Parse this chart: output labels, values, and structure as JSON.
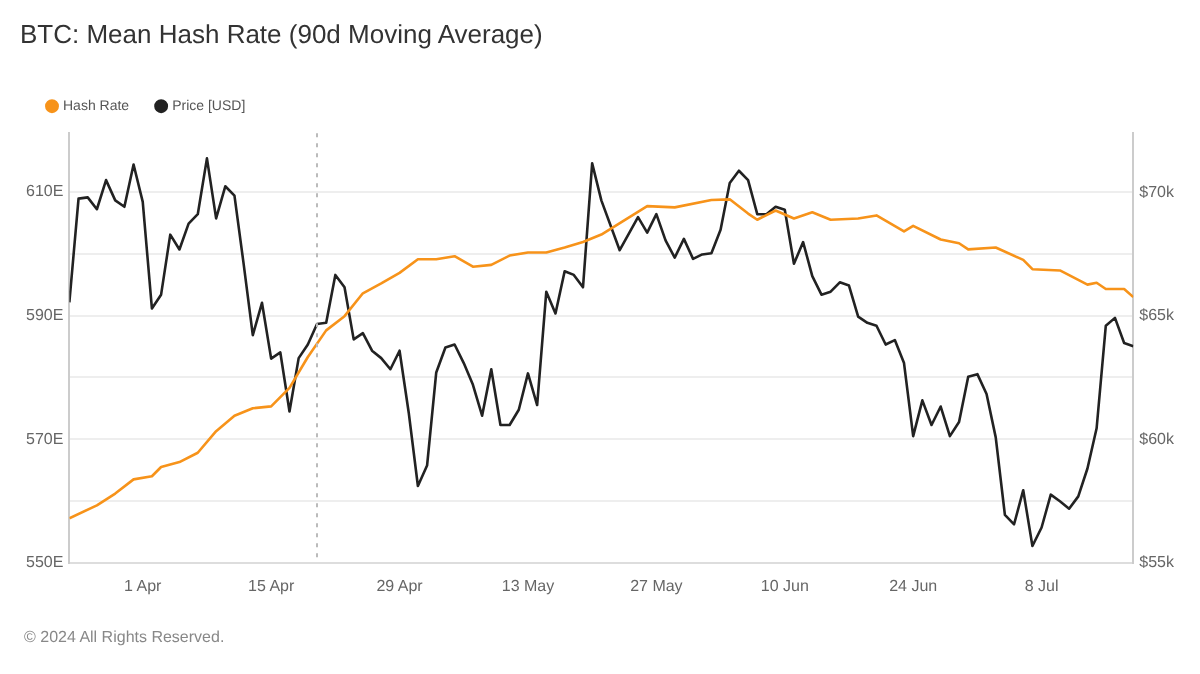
{
  "chart_data": {
    "type": "line",
    "title": "BTC: Mean Hash Rate (90d Moving Average)",
    "annotations": [
      "© 2024 All Rights Reserved."
    ],
    "xlim": [
      "2024-03-24",
      "2024-07-18"
    ],
    "xticks": [
      {
        "value": "2024-04-01",
        "label": "1 Apr"
      },
      {
        "value": "2024-04-15",
        "label": "15 Apr"
      },
      {
        "value": "2024-04-29",
        "label": "29 Apr"
      },
      {
        "value": "2024-05-13",
        "label": "13 May"
      },
      {
        "value": "2024-05-27",
        "label": "27 May"
      },
      {
        "value": "2024-06-10",
        "label": "10 Jun"
      },
      {
        "value": "2024-06-24",
        "label": "24 Jun"
      },
      {
        "value": "2024-07-08",
        "label": "8 Jul"
      }
    ],
    "ylim": [
      550,
      619.5
    ],
    "yticks": [
      {
        "value": 550,
        "label": "550E"
      },
      {
        "value": 560,
        "label": null
      },
      {
        "value": 570,
        "label": "570E"
      },
      {
        "value": 580,
        "label": null
      },
      {
        "value": 590,
        "label": "590E"
      },
      {
        "value": 600,
        "label": null
      },
      {
        "value": 610,
        "label": "610E"
      }
    ],
    "y2lim": [
      55000,
      72400
    ],
    "y2ticks": [
      {
        "value": 55000,
        "label": "$55k"
      },
      {
        "value": 60000,
        "label": "$60k"
      },
      {
        "value": 65000,
        "label": "$65k"
      },
      {
        "value": 70000,
        "label": "$70k"
      }
    ],
    "grid": "y",
    "legend": "top left",
    "marker": "none",
    "line_style": "solid",
    "ref_lines": [
      {
        "axis": "x",
        "value": "2024-04-20",
        "label": null,
        "color": "#bbbbbb",
        "line_style": "dotted"
      }
    ],
    "series": [
      {
        "name": "Hash Rate",
        "color": "#f7931a",
        "x": [
          "2024-03-24",
          "2024-03-27",
          "2024-03-29",
          "2024-03-31",
          "2024-04-02",
          "2024-04-03",
          "2024-04-05",
          "2024-04-07",
          "2024-04-09",
          "2024-04-11",
          "2024-04-13",
          "2024-04-15",
          "2024-04-17",
          "2024-04-19",
          "2024-04-21",
          "2024-04-23",
          "2024-04-25",
          "2024-04-27",
          "2024-04-29",
          "2024-05-01",
          "2024-05-03",
          "2024-05-05",
          "2024-05-07",
          "2024-05-09",
          "2024-05-11",
          "2024-05-13",
          "2024-05-15",
          "2024-05-17",
          "2024-05-19",
          "2024-05-21",
          "2024-05-26",
          "2024-05-29",
          "2024-06-02",
          "2024-06-04",
          "2024-06-06",
          "2024-06-07",
          "2024-06-09",
          "2024-06-11",
          "2024-06-13",
          "2024-06-15",
          "2024-06-18",
          "2024-06-20",
          "2024-06-23",
          "2024-06-24",
          "2024-06-27",
          "2024-06-29",
          "2024-06-30",
          "2024-07-03",
          "2024-07-06",
          "2024-07-07",
          "2024-07-10",
          "2024-07-13",
          "2024-07-14",
          "2024-07-15",
          "2024-07-17",
          "2024-07-18"
        ],
        "values": [
          557.2,
          559.3,
          561.2,
          563.5,
          564.0,
          565.5,
          566.3,
          567.8,
          571.3,
          573.8,
          575.0,
          575.3,
          578.3,
          583.3,
          587.6,
          589.9,
          593.6,
          595.2,
          596.9,
          599.1,
          599.1,
          599.6,
          597.9,
          598.2,
          599.7,
          600.2,
          600.2,
          601.0,
          601.9,
          603.1,
          607.7,
          607.5,
          608.7,
          608.8,
          606.5,
          605.5,
          607.0,
          605.7,
          606.7,
          605.5,
          605.7,
          606.2,
          603.6,
          604.5,
          602.3,
          601.7,
          600.7,
          601.0,
          599.0,
          597.5,
          597.3,
          595.0,
          595.3,
          594.3,
          594.3,
          593.0
        ]
      },
      {
        "name": "Price [USD]",
        "color": "#222222",
        "axis": "y2",
        "x": [
          "2024-03-24",
          "2024-03-25",
          "2024-03-26",
          "2024-03-27",
          "2024-03-28",
          "2024-03-29",
          "2024-03-30",
          "2024-03-31",
          "2024-04-01",
          "2024-04-02",
          "2024-04-03",
          "2024-04-04",
          "2024-04-05",
          "2024-04-06",
          "2024-04-07",
          "2024-04-08",
          "2024-04-09",
          "2024-04-10",
          "2024-04-11",
          "2024-04-12",
          "2024-04-13",
          "2024-04-14",
          "2024-04-15",
          "2024-04-16",
          "2024-04-17",
          "2024-04-18",
          "2024-04-19",
          "2024-04-20",
          "2024-04-21",
          "2024-04-22",
          "2024-04-23",
          "2024-04-24",
          "2024-04-25",
          "2024-04-26",
          "2024-04-27",
          "2024-04-28",
          "2024-04-29",
          "2024-04-30",
          "2024-05-01",
          "2024-05-02",
          "2024-05-03",
          "2024-05-04",
          "2024-05-05",
          "2024-05-06",
          "2024-05-07",
          "2024-05-08",
          "2024-05-09",
          "2024-05-10",
          "2024-05-11",
          "2024-05-12",
          "2024-05-13",
          "2024-05-14",
          "2024-05-15",
          "2024-05-16",
          "2024-05-17",
          "2024-05-18",
          "2024-05-19",
          "2024-05-20",
          "2024-05-21",
          "2024-05-23",
          "2024-05-25",
          "2024-05-26",
          "2024-05-27",
          "2024-05-28",
          "2024-05-29",
          "2024-05-30",
          "2024-05-31",
          "2024-06-01",
          "2024-06-02",
          "2024-06-03",
          "2024-06-04",
          "2024-06-05",
          "2024-06-06",
          "2024-06-07",
          "2024-06-08",
          "2024-06-09",
          "2024-06-10",
          "2024-06-11",
          "2024-06-12",
          "2024-06-13",
          "2024-06-14",
          "2024-06-15",
          "2024-06-16",
          "2024-06-17",
          "2024-06-18",
          "2024-06-19",
          "2024-06-20",
          "2024-06-21",
          "2024-06-22",
          "2024-06-23",
          "2024-06-24",
          "2024-06-25",
          "2024-06-26",
          "2024-06-27",
          "2024-06-28",
          "2024-06-29",
          "2024-06-30",
          "2024-07-01",
          "2024-07-02",
          "2024-07-03",
          "2024-07-04",
          "2024-07-05",
          "2024-07-06",
          "2024-07-07",
          "2024-07-08",
          "2024-07-09",
          "2024-07-10",
          "2024-07-11",
          "2024-07-12",
          "2024-07-13",
          "2024-07-14",
          "2024-07-15",
          "2024-07-16",
          "2024-07-17",
          "2024-07-18"
        ],
        "values": [
          65550,
          69750,
          69800,
          69320,
          70500,
          69680,
          69420,
          71130,
          69620,
          65300,
          65860,
          68290,
          67690,
          68740,
          69120,
          71380,
          68950,
          70250,
          69870,
          67110,
          64220,
          65530,
          63270,
          63520,
          61130,
          63290,
          63840,
          64670,
          64720,
          66660,
          66160,
          64050,
          64300,
          63590,
          63290,
          62840,
          63590,
          61080,
          58110,
          58940,
          62710,
          63720,
          63840,
          63090,
          62210,
          60960,
          62840,
          60580,
          60580,
          61200,
          62670,
          61390,
          65980,
          65100,
          66810,
          66660,
          66160,
          71180,
          69680,
          67660,
          69000,
          68370,
          69120,
          68060,
          67360,
          68120,
          67310,
          67490,
          67540,
          68490,
          70380,
          70880,
          70500,
          69120,
          69120,
          69420,
          69300,
          67110,
          67990,
          66610,
          65860,
          65980,
          66360,
          66230,
          64970,
          64720,
          64600,
          63840,
          64020,
          63090,
          60130,
          61580,
          60580,
          61330,
          60130,
          60700,
          62540,
          62640,
          61840,
          60080,
          56940,
          56560,
          57940,
          55680,
          56430,
          57760,
          57490,
          57190,
          57690,
          58820,
          60450,
          64600,
          64920,
          63900,
          63770
        ]
      }
    ]
  }
}
